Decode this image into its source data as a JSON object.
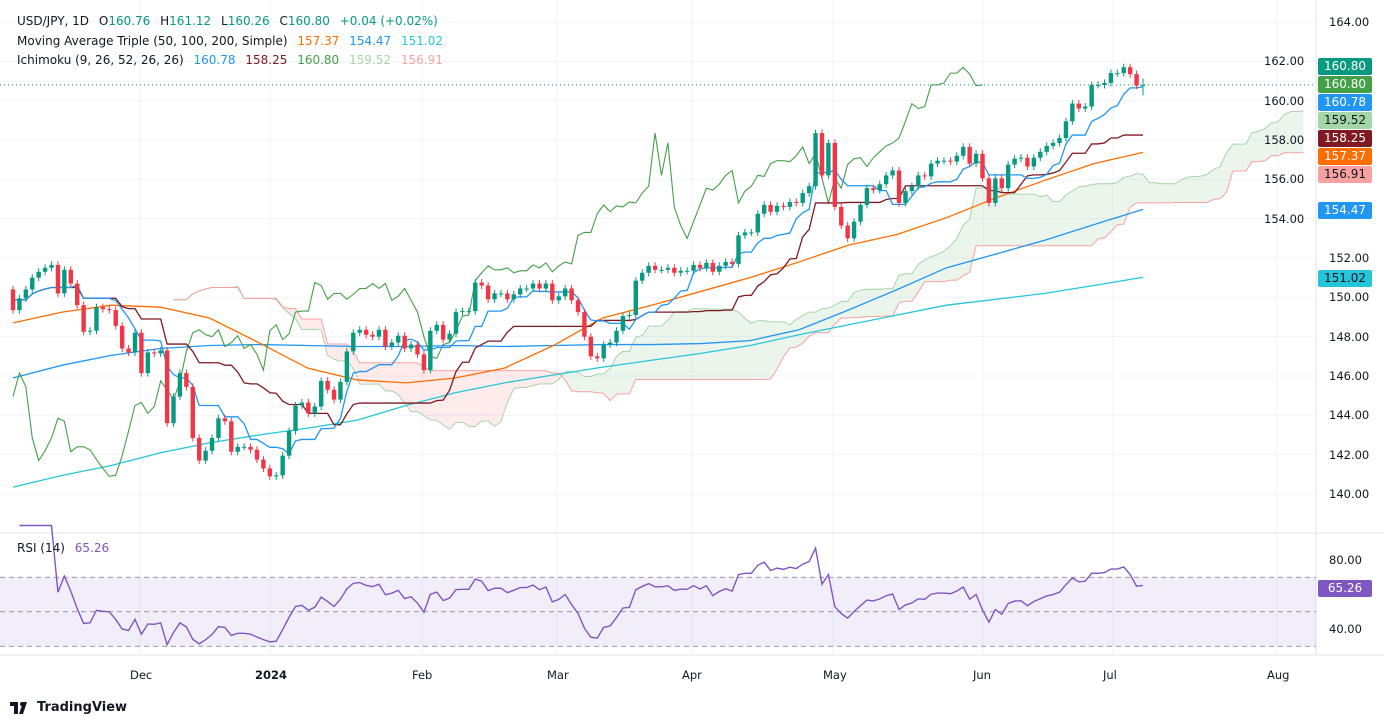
{
  "header": {
    "symbol": "USD/JPY, 1D",
    "o_label": "O",
    "open": "160.76",
    "h_label": "H",
    "high": "161.12",
    "l_label": "L",
    "low": "160.26",
    "c_label": "C",
    "close": "160.80",
    "change": "+0.04 (+0.02%)"
  },
  "ma": {
    "label": "Moving Average Triple (50, 100, 200, Simple)",
    "v50": "157.37",
    "v100": "154.47",
    "v200": "151.02"
  },
  "ichimoku": {
    "label": "Ichimoku (9, 26, 52, 26, 26)",
    "tenkan": "160.78",
    "kijun": "158.25",
    "chikou": "160.80",
    "span_a": "159.52",
    "span_b": "156.91"
  },
  "rsi": {
    "label": "RSI (14)",
    "value": "65.26"
  },
  "price_axis": [
    "164.00",
    "162.00",
    "160.00",
    "158.00",
    "156.00",
    "154.00",
    "152.00",
    "150.00",
    "148.00",
    "146.00",
    "144.00",
    "142.00",
    "140.00"
  ],
  "rsi_axis": [
    "80.00",
    "40.00"
  ],
  "time_axis": [
    "Dec",
    "2024",
    "Feb",
    "Mar",
    "Apr",
    "May",
    "Jun",
    "Jul",
    "Aug"
  ],
  "price_labels": [
    {
      "value": "160.80",
      "bg": "#089981",
      "fg": "#ffffff"
    },
    {
      "value": "160.80",
      "bg": "#43a047",
      "fg": "#ffffff"
    },
    {
      "value": "160.78",
      "bg": "#2196f3",
      "fg": "#ffffff"
    },
    {
      "value": "159.52",
      "bg": "#a5d6a7",
      "fg": "#131722"
    },
    {
      "value": "158.25",
      "bg": "#801922",
      "fg": "#ffffff"
    },
    {
      "value": "157.37",
      "bg": "#ff6d00",
      "fg": "#ffffff"
    },
    {
      "value": "156.91",
      "bg": "#f7a1a1",
      "fg": "#131722"
    },
    {
      "value": "154.47",
      "bg": "#2196f3",
      "fg": "#ffffff"
    },
    {
      "value": "151.02",
      "bg": "#26c6da",
      "fg": "#131722"
    }
  ],
  "colors": {
    "up": "#089981",
    "down": "#f23645",
    "sma50": "#ff6d00",
    "sma100": "#2196f3",
    "sma200": "#26c6da",
    "tenkan": "#2196f3",
    "kijun": "#801922",
    "chikou": "#43a047",
    "span_a": "#a5d6a7",
    "span_b": "#f7a1a1",
    "rsi": "#7e57c2"
  },
  "branding": "TradingView",
  "chart_data": {
    "type": "candlestick",
    "title": "USD/JPY, 1D",
    "ylim": [
      139,
      165
    ],
    "rsi_ylim": [
      25,
      90
    ],
    "rsi_bands": [
      70,
      50,
      30
    ],
    "first_open": 150.4,
    "close": [
      149.35,
      149.95,
      150.4,
      151.0,
      151.3,
      151.5,
      151.65,
      150.2,
      151.4,
      150.7,
      149.6,
      148.25,
      148.3,
      149.5,
      149.4,
      149.35,
      148.55,
      147.4,
      147.2,
      148.2,
      146.15,
      147.2,
      147.15,
      147.3,
      143.6,
      144.95,
      146.15,
      145.45,
      142.85,
      141.7,
      142.2,
      142.85,
      143.85,
      143.7,
      142.15,
      142.4,
      142.4,
      142.25,
      141.75,
      141.3,
      140.9,
      140.95,
      141.95,
      143.2,
      144.5,
      144.65,
      144.1,
      144.45,
      145.75,
      145.3,
      144.8,
      145.7,
      147.25,
      148.2,
      148.35,
      148.1,
      148.0,
      148.35,
      147.5,
      147.7,
      148.05,
      147.4,
      147.6,
      147.1,
      146.3,
      148.3,
      148.6,
      147.85,
      148.15,
      149.25,
      149.3,
      149.3,
      150.75,
      150.6,
      149.9,
      150.2,
      150.2,
      149.9,
      150.15,
      150.45,
      150.45,
      150.7,
      150.45,
      150.7,
      149.85,
      150.05,
      150.45,
      149.85,
      149.25,
      148.0,
      147.0,
      146.9,
      147.6,
      147.7,
      148.3,
      149.05,
      149.1,
      150.85,
      151.25,
      151.6,
      151.4,
      151.4,
      151.5,
      151.25,
      151.35,
      151.35,
      151.65,
      151.5,
      151.75,
      151.3,
      151.6,
      151.8,
      151.7,
      153.15,
      153.3,
      153.3,
      154.25,
      154.7,
      154.35,
      154.65,
      154.6,
      154.85,
      154.8,
      155.3,
      155.65,
      158.35,
      156.2,
      157.85,
      154.6,
      153.65,
      153.0,
      153.85,
      154.7,
      155.55,
      155.45,
      155.75,
      156.2,
      156.45,
      154.8,
      155.4,
      155.65,
      156.2,
      156.15,
      156.8,
      156.95,
      156.95,
      156.9,
      157.2,
      157.65,
      156.8,
      157.3,
      156.05,
      154.8,
      156.05,
      155.55,
      156.75,
      157.05,
      157.1,
      156.65,
      157.1,
      157.4,
      157.7,
      157.85,
      158.1,
      158.95,
      159.85,
      159.6,
      159.7,
      160.8,
      160.8,
      160.9,
      161.4,
      161.4,
      161.7,
      161.35,
      160.76,
      160.8
    ],
    "sma50": [
      148.7,
      149.25,
      149.6,
      149.5,
      148.95,
      147.7,
      146.4,
      145.8,
      145.65,
      145.9,
      146.4,
      147.55,
      148.95,
      149.6,
      150.3,
      151.0,
      151.8,
      152.65,
      153.2,
      154.05,
      155.05,
      155.95,
      156.8,
      157.37
    ],
    "sma100": [
      145.9,
      146.55,
      147.05,
      147.4,
      147.55,
      147.6,
      147.55,
      147.5,
      147.5,
      147.55,
      147.5,
      147.55,
      147.6,
      147.6,
      147.65,
      147.8,
      148.35,
      149.35,
      150.4,
      151.5,
      152.2,
      152.9,
      153.7,
      154.47
    ],
    "sma200": [
      140.35,
      140.95,
      141.45,
      142.1,
      142.6,
      143.0,
      143.35,
      143.75,
      144.5,
      145.15,
      145.65,
      146.05,
      146.45,
      146.8,
      147.15,
      147.55,
      148.1,
      148.6,
      149.1,
      149.6,
      149.9,
      150.2,
      150.6,
      151.02
    ]
  }
}
